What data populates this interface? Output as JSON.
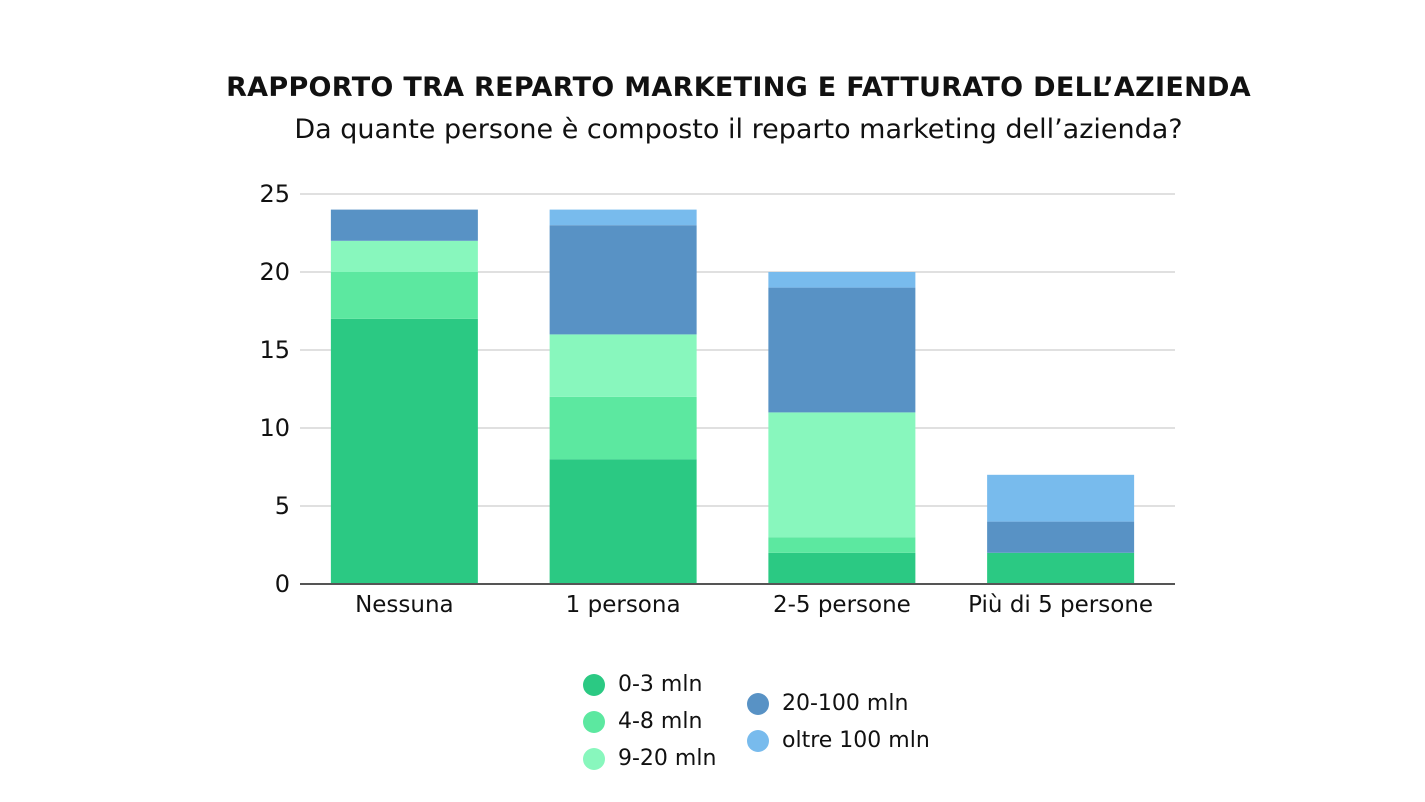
{
  "chart_data": {
    "type": "bar",
    "stacked": true,
    "title": "RAPPORTO TRA REPARTO MARKETING E FATTURATO DELL’AZIENDA",
    "subtitle": "Da quante persone è composto il reparto marketing dell’azienda?",
    "categories": [
      "Nessuna",
      "1 persona",
      "2-5 persone",
      "Più di 5 persone"
    ],
    "series": [
      {
        "name": "0-3 mln",
        "color": "#2bc983",
        "values": [
          17,
          8,
          2,
          2
        ]
      },
      {
        "name": "4-8 mln",
        "color": "#5ce8a0",
        "values": [
          3,
          4,
          1,
          0
        ]
      },
      {
        "name": "9-20 mln",
        "color": "#88f7bd",
        "values": [
          2,
          4,
          8,
          0
        ]
      },
      {
        "name": "20-100 mln",
        "color": "#5892c5",
        "values": [
          2,
          7,
          8,
          2
        ]
      },
      {
        "name": "oltre 100 mln",
        "color": "#78bbed",
        "values": [
          0,
          1,
          1,
          3
        ]
      }
    ],
    "ylim": [
      0,
      25
    ],
    "yticks": [
      "0",
      "5",
      "10",
      "15",
      "20",
      "25"
    ],
    "grid": true,
    "legend_position": "bottom"
  }
}
